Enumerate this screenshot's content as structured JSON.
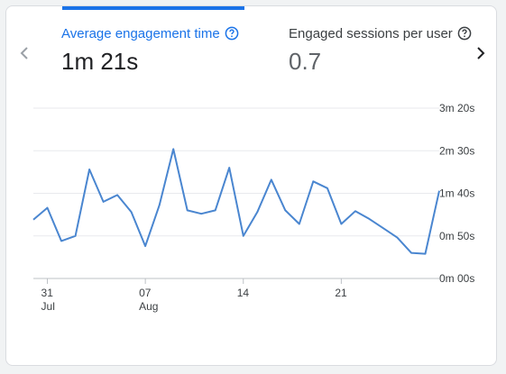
{
  "tabs": [
    {
      "label": "Average engagement time",
      "value": "1m 21s",
      "active": true
    },
    {
      "label": "Engaged sessions per user",
      "value": "0.7",
      "active": false
    }
  ],
  "icons": {
    "help": "help-circle-icon",
    "prev": "chevron-left-icon",
    "next": "chevron-right-icon"
  },
  "colors": {
    "accent": "#1a73e8",
    "line": "#4a86d0",
    "grid": "#e8eaed",
    "nav_disabled": "#9aa0a6",
    "nav_enabled": "#202124"
  },
  "chart_data": {
    "type": "line",
    "x_ticks": [
      {
        "day": 1,
        "label": "31",
        "sublabel": "Jul"
      },
      {
        "day": 8,
        "label": "07",
        "sublabel": "Aug"
      },
      {
        "day": 15,
        "label": "14",
        "sublabel": ""
      },
      {
        "day": 22,
        "label": "21",
        "sublabel": ""
      }
    ],
    "y_ticks": [
      {
        "seconds": 0,
        "label": "0m 00s"
      },
      {
        "seconds": 50,
        "label": "0m 50s"
      },
      {
        "seconds": 100,
        "label": "1m 40s"
      },
      {
        "seconds": 150,
        "label": "2m 30s"
      },
      {
        "seconds": 200,
        "label": "3m 20s"
      }
    ],
    "ylim": [
      0,
      200
    ],
    "grid": true,
    "series": [
      {
        "x": [
          0,
          1,
          2,
          3,
          4,
          5,
          6,
          7,
          8,
          9,
          10,
          11,
          12,
          13,
          14,
          15,
          16,
          17,
          18,
          19,
          20,
          21,
          22,
          23,
          24,
          25,
          26,
          27,
          28,
          29
        ],
        "values": [
          69,
          83,
          44,
          50,
          128,
          90,
          98,
          78,
          38,
          86,
          152,
          80,
          76,
          80,
          130,
          50,
          78,
          116,
          80,
          64,
          114,
          106,
          64,
          79,
          70,
          59,
          48,
          30,
          29,
          103
        ]
      }
    ]
  }
}
